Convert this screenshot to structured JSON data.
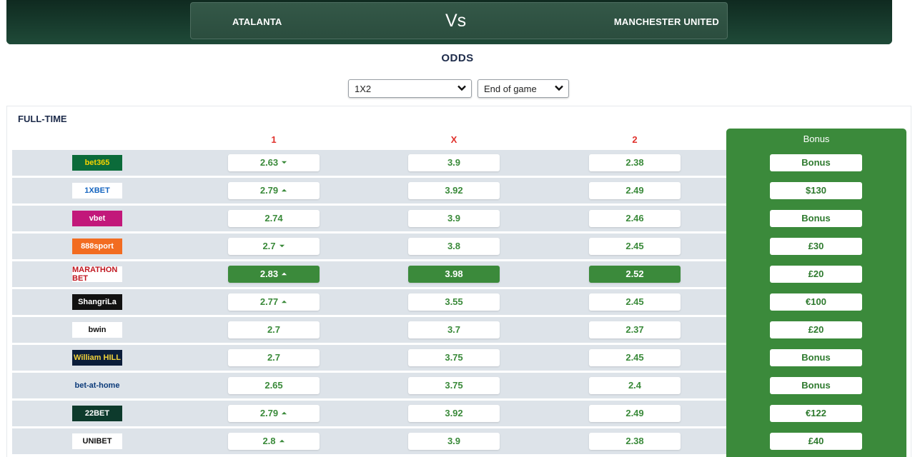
{
  "header": {
    "home_team": "ATALANTA",
    "vs": "Vs",
    "away_team": "MANCHESTER UNITED"
  },
  "odds_title": "ODDS",
  "filters": {
    "market": "1X2",
    "period": "End of game"
  },
  "section": {
    "title": "FULL-TIME"
  },
  "columns": {
    "home": "1",
    "draw": "X",
    "away": "2",
    "bonus": "Bonus"
  },
  "colors": {
    "accent_green": "#3b8a3b",
    "header_dark": "#143528",
    "row_bg": "#dde3e9",
    "label_red": "#e0302b"
  },
  "bookmakers": [
    {
      "logo": "bet365",
      "logo_bg": "#0b6b3a",
      "logo_color": "#f5d300",
      "home": "2.63",
      "home_trend": "down",
      "draw": "3.9",
      "away": "2.38",
      "bonus": "Bonus"
    },
    {
      "logo": "1XBET",
      "logo_bg": "#ffffff",
      "logo_color": "#1565c0",
      "home": "2.79",
      "home_trend": "up",
      "draw": "3.92",
      "away": "2.49",
      "bonus": "$130"
    },
    {
      "logo": "vbet",
      "logo_bg": "#c2187a",
      "logo_color": "#ffffff",
      "home": "2.74",
      "home_trend": "",
      "draw": "3.9",
      "away": "2.46",
      "bonus": "Bonus"
    },
    {
      "logo": "888sport",
      "logo_bg": "#f26c21",
      "logo_color": "#ffffff",
      "home": "2.7",
      "home_trend": "down",
      "draw": "3.8",
      "away": "2.45",
      "bonus": "£30"
    },
    {
      "logo": "MARATHON BET",
      "logo_bg": "#ffffff",
      "logo_color": "#c0161f",
      "home": "2.83",
      "home_trend": "up",
      "draw": "3.98",
      "away": "2.52",
      "bonus": "£20",
      "best": true
    },
    {
      "logo": "ShangriLa",
      "logo_bg": "#111111",
      "logo_color": "#ffffff",
      "home": "2.77",
      "home_trend": "up",
      "draw": "3.55",
      "away": "2.45",
      "bonus": "€100"
    },
    {
      "logo": "bwin",
      "logo_bg": "#ffffff",
      "logo_color": "#111111",
      "home": "2.7",
      "home_trend": "",
      "draw": "3.7",
      "away": "2.37",
      "bonus": "£20"
    },
    {
      "logo": "William HILL",
      "logo_bg": "#0b1d3a",
      "logo_color": "#f2d33a",
      "home": "2.7",
      "home_trend": "",
      "draw": "3.75",
      "away": "2.45",
      "bonus": "Bonus"
    },
    {
      "logo": "bet-at-home",
      "logo_bg": "#dde3e9",
      "logo_color": "#0c3b7a",
      "home": "2.65",
      "home_trend": "",
      "draw": "3.75",
      "away": "2.4",
      "bonus": "Bonus"
    },
    {
      "logo": "22BET",
      "logo_bg": "#0d3a2c",
      "logo_color": "#ffffff",
      "home": "2.79",
      "home_trend": "up",
      "draw": "3.92",
      "away": "2.49",
      "bonus": "€122"
    },
    {
      "logo": "UNIBET",
      "logo_bg": "#ffffff",
      "logo_color": "#111111",
      "home": "2.8",
      "home_trend": "up",
      "draw": "3.9",
      "away": "2.38",
      "bonus": "£40"
    }
  ]
}
